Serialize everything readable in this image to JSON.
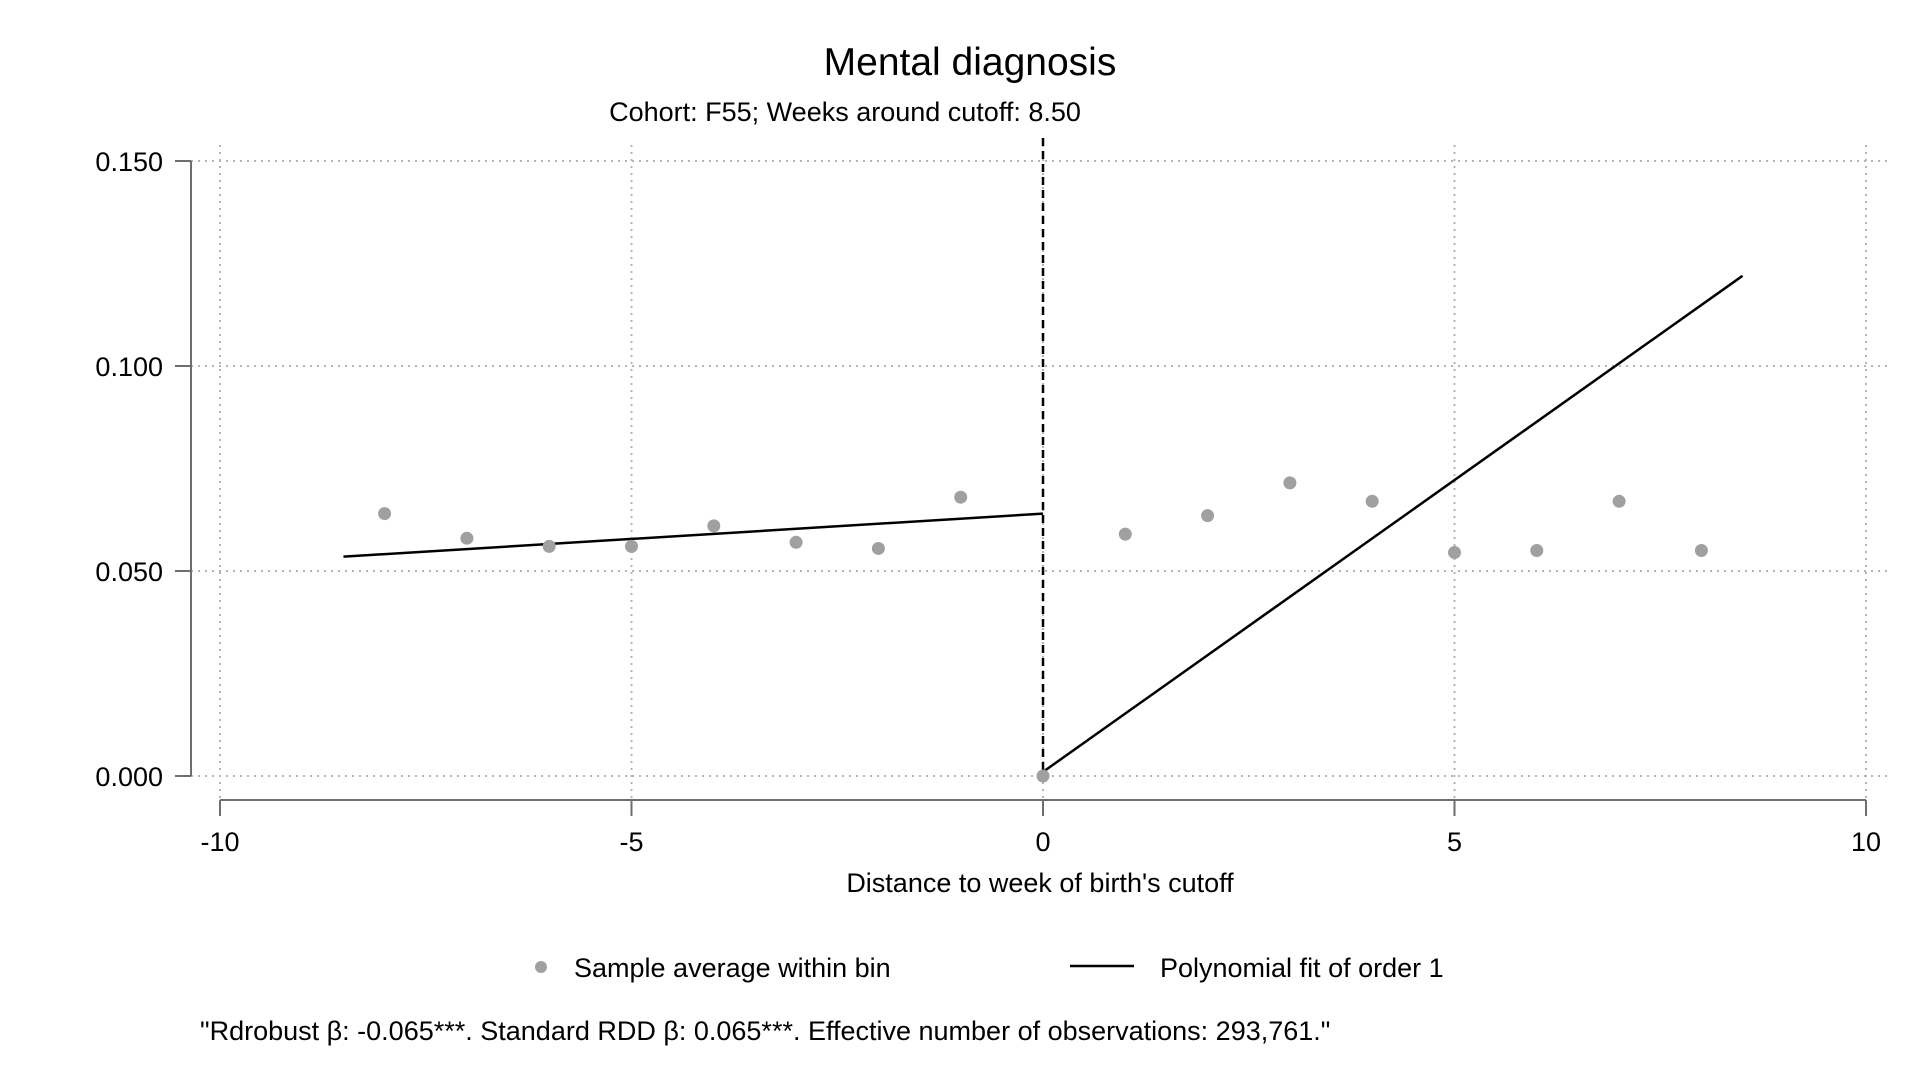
{
  "chart_data": {
    "type": "scatter",
    "title": "Mental diagnosis",
    "subtitle": "Cohort: F55; Weeks around cutoff: 8.50",
    "xlabel": "Distance to week of birth's cutoff",
    "ylabel": "",
    "xlim": [
      -10,
      10
    ],
    "ylim": [
      0,
      0.15
    ],
    "x_ticks": [
      -10,
      -5,
      0,
      5,
      10
    ],
    "x_tick_labels": [
      "-10",
      "-5",
      "0",
      "5",
      "10"
    ],
    "y_ticks": [
      0,
      0.05,
      0.1,
      0.15
    ],
    "y_tick_labels": [
      "0.000",
      "0.050",
      "0.100",
      "0.150"
    ],
    "grid": "dotted",
    "cutoff_line_x": 0,
    "series": [
      {
        "name": "Sample average within bin",
        "kind": "points",
        "color": "#a0a0a0",
        "points": [
          {
            "x": -8,
            "y": 0.064
          },
          {
            "x": -7,
            "y": 0.058
          },
          {
            "x": -6,
            "y": 0.056
          },
          {
            "x": -5,
            "y": 0.056
          },
          {
            "x": -4,
            "y": 0.061
          },
          {
            "x": -3,
            "y": 0.057
          },
          {
            "x": -2,
            "y": 0.0555
          },
          {
            "x": -1,
            "y": 0.068
          },
          {
            "x": 0,
            "y": 0.0
          },
          {
            "x": 1,
            "y": 0.059
          },
          {
            "x": 2,
            "y": 0.0635
          },
          {
            "x": 3,
            "y": 0.0715
          },
          {
            "x": 4,
            "y": 0.067
          },
          {
            "x": 5,
            "y": 0.0545
          },
          {
            "x": 6,
            "y": 0.055
          },
          {
            "x": 7,
            "y": 0.067
          },
          {
            "x": 8,
            "y": 0.055
          }
        ]
      },
      {
        "name": "Polynomial fit of order 1",
        "kind": "lines",
        "color": "#000000",
        "segments": [
          [
            {
              "x": -8.5,
              "y": 0.0535
            },
            {
              "x": 0,
              "y": 0.064
            }
          ],
          [
            {
              "x": 0,
              "y": 0.001
            },
            {
              "x": 8.5,
              "y": 0.122
            }
          ]
        ]
      }
    ],
    "legend": {
      "placement": "bottom",
      "items": [
        "Sample average within bin",
        "Polynomial fit of order 1"
      ]
    },
    "note": "\"Rdrobust β: -0.065***. Standard RDD β: 0.065***. Effective number of observations: 293,761.\""
  }
}
